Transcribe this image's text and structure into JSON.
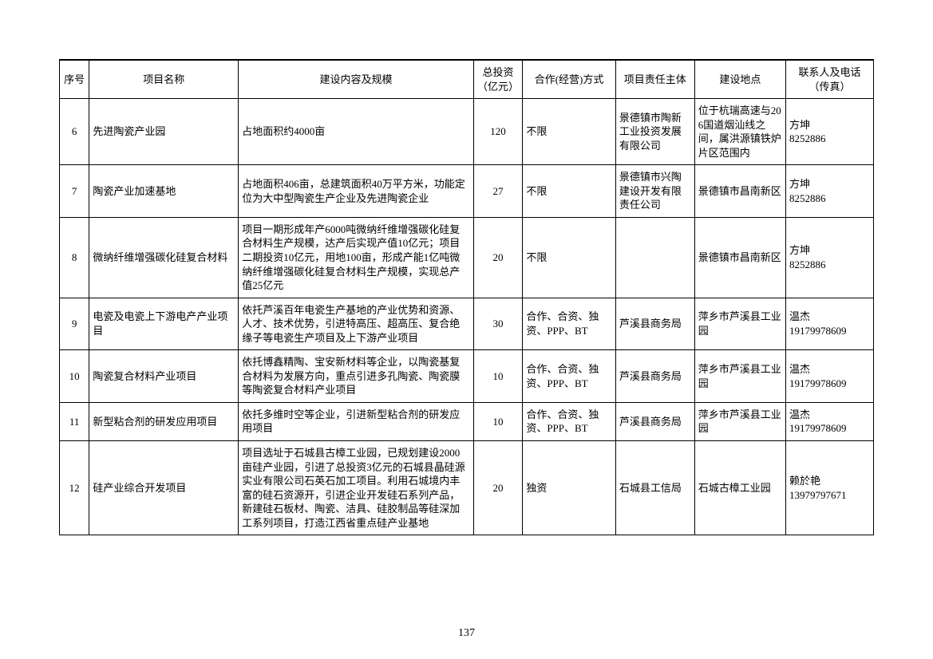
{
  "page_number": "137",
  "table": {
    "columns": [
      "序号",
      "项目名称",
      "建设内容及规模",
      "总投资（亿元）",
      "合作(经营)方式",
      "项目责任主体",
      "建设地点",
      "联系人及电话（传真）"
    ],
    "rows": [
      {
        "seq": "6",
        "name": "先进陶瓷产业园",
        "desc": "占地面积约4000亩",
        "investment": "120",
        "coop": "不限",
        "responsible": "景德镇市陶新工业投资发展有限公司",
        "location": "位于杭瑞高速与206国道烟汕线之间，属洪源镇铁炉片区范围内",
        "contact": "方坤\n8252886"
      },
      {
        "seq": "7",
        "name": "陶瓷产业加速基地",
        "desc": "占地面积406亩，总建筑面积40万平方米，功能定位为大中型陶瓷生产企业及先进陶瓷企业",
        "investment": "27",
        "coop": "不限",
        "responsible": "景德镇市兴陶建设开发有限责任公司",
        "location": "景德镇市昌南新区",
        "contact": "方坤\n8252886"
      },
      {
        "seq": "8",
        "name": "微纳纤维增强碳化硅复合材料",
        "desc": "项目一期形成年产6000吨微纳纤维增强碳化硅复合材料生产规模，达产后实现产值10亿元；项目二期投资10亿元，用地100亩，形成产能1亿吨微纳纤维增强碳化硅复合材料生产规模，实现总产值25亿元",
        "investment": "20",
        "coop": "不限",
        "responsible": "",
        "location": "景德镇市昌南新区",
        "contact": "方坤\n8252886"
      },
      {
        "seq": "9",
        "name": "电瓷及电瓷上下游电产产业项目",
        "desc": "依托芦溪百年电瓷生产基地的产业优势和资源、人才、技术优势，引进特高压、超高压、复合绝缘子等电瓷生产项目及上下游产业项目",
        "investment": "30",
        "coop": "合作、合资、独资、PPP、BT",
        "responsible": "芦溪县商务局",
        "location": "萍乡市芦溪县工业园",
        "contact": "温杰\n19179978609"
      },
      {
        "seq": "10",
        "name": "陶瓷复合材料产业项目",
        "desc": "依托博鑫精陶、宝安新材料等企业，以陶瓷基复合材料为发展方向，重点引进多孔陶瓷、陶瓷膜等陶瓷复合材料产业项目",
        "investment": "10",
        "coop": "合作、合资、独资、PPP、BT",
        "responsible": "芦溪县商务局",
        "location": "萍乡市芦溪县工业园",
        "contact": "温杰\n19179978609"
      },
      {
        "seq": "11",
        "name": "新型粘合剂的研发应用项目",
        "desc": "依托多维时空等企业，引进新型粘合剂的研发应用项目",
        "investment": "10",
        "coop": "合作、合资、独资、PPP、BT",
        "responsible": "芦溪县商务局",
        "location": "萍乡市芦溪县工业园",
        "contact": "温杰\n19179978609"
      },
      {
        "seq": "12",
        "name": "硅产业综合开发项目",
        "desc": "项目选址于石城县古樟工业园，已规划建设2000亩硅产业园，引进了总投资3亿元的石城县晶硅源实业有限公司石英石加工项目。利用石城境内丰富的硅石资源开，引进企业开发硅石系列产品，新建硅石板材、陶瓷、洁具、硅胶制品等硅深加工系列项目，打造江西省重点硅产业基地",
        "investment": "20",
        "coop": "独资",
        "responsible": "石城县工信局",
        "location": "石城古樟工业园",
        "contact": "赖於艳\n13979797671"
      }
    ]
  }
}
